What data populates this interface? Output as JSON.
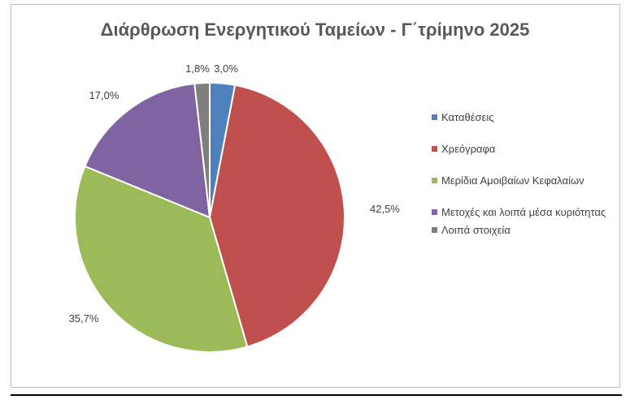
{
  "chart_data": {
    "type": "pie",
    "title": "Διάρθρωση Ενεργητικού Ταμείων - Γ΄τρίμηνο 2025",
    "categories": [
      "Καταθέσεις",
      "Χρεόγραφα",
      "Μερίδια Αμοιβαίων Κεφαλαίων",
      "Μετοχές και λοιπά μέσα κυριότητας",
      "Λοιπά στοιχεία"
    ],
    "values": [
      3.0,
      42.5,
      35.7,
      17.0,
      1.8
    ],
    "value_labels": [
      "3,0%",
      "42,5%",
      "35,7%",
      "17,0%",
      "1,8%"
    ],
    "colors": [
      "#4f81bd",
      "#c0504d",
      "#9bbb59",
      "#8064a2",
      "#7f7f7f"
    ],
    "legend_position": "right"
  }
}
